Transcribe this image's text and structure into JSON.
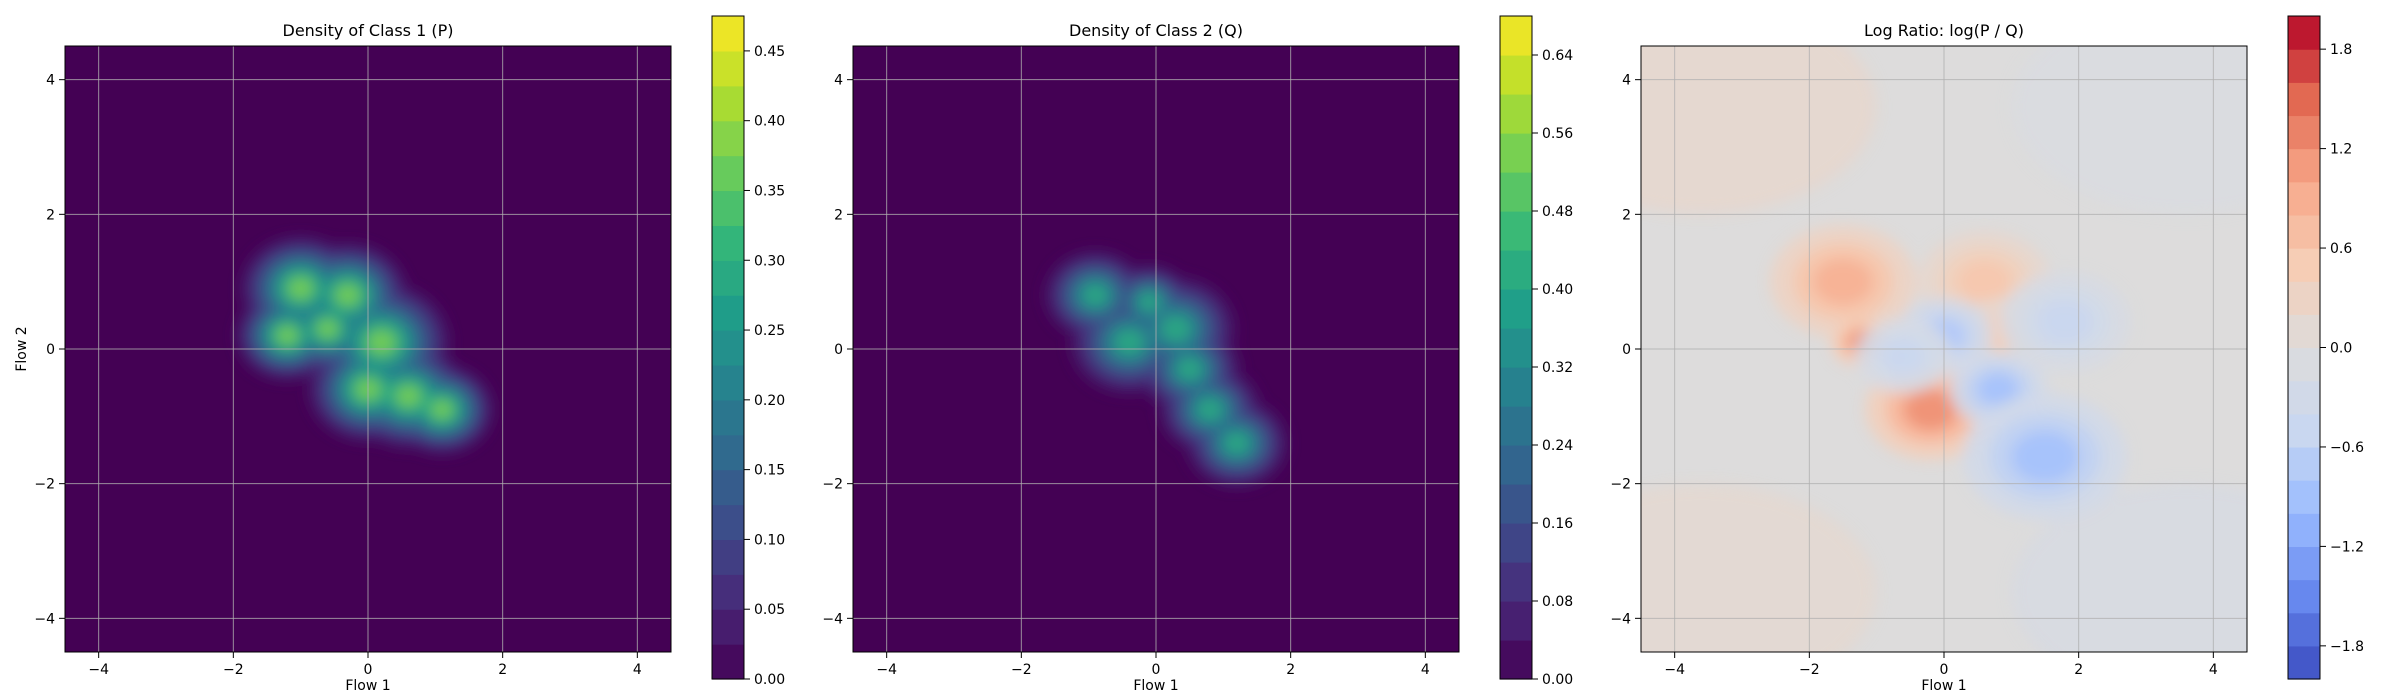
{
  "chart_data": [
    {
      "type": "heatmap",
      "title": "Density of Class 1 (P)",
      "xlabel": "Flow 1",
      "ylabel": "Flow 2",
      "xlim": [
        -4.5,
        4.5
      ],
      "ylim": [
        -4.5,
        4.5
      ],
      "xticks": [
        -4,
        -2,
        0,
        2,
        4
      ],
      "yticks": [
        -4,
        -2,
        0,
        2,
        4
      ],
      "xtick_labels": [
        "−4",
        "−2",
        "0",
        "2",
        "4"
      ],
      "ytick_labels": [
        "−4",
        "−2",
        "0",
        "2",
        "4"
      ],
      "grid": true,
      "colormap": "viridis",
      "colorbar": {
        "min": 0.0,
        "max": 0.475,
        "ticks": [
          0.0,
          0.05,
          0.1,
          0.15,
          0.2,
          0.25,
          0.3,
          0.35,
          0.4,
          0.45
        ],
        "tick_labels": [
          "0.00",
          "0.05",
          "0.10",
          "0.15",
          "0.20",
          "0.25",
          "0.30",
          "0.35",
          "0.40",
          "0.45"
        ]
      },
      "peak_value": 0.45,
      "clusters": [
        {
          "x": -1.0,
          "y": 0.9,
          "spread": 0.35
        },
        {
          "x": -0.3,
          "y": 0.8,
          "spread": 0.35
        },
        {
          "x": -0.6,
          "y": 0.3,
          "spread": 0.3
        },
        {
          "x": -1.2,
          "y": 0.2,
          "spread": 0.3
        },
        {
          "x": 0.0,
          "y": -0.6,
          "spread": 0.35
        },
        {
          "x": 0.6,
          "y": -0.7,
          "spread": 0.35
        },
        {
          "x": 1.1,
          "y": -0.9,
          "spread": 0.3
        },
        {
          "x": 0.2,
          "y": 0.1,
          "spread": 0.4
        }
      ]
    },
    {
      "type": "heatmap",
      "title": "Density of Class 2 (Q)",
      "xlabel": "Flow 1",
      "ylabel": "",
      "xlim": [
        -4.5,
        4.5
      ],
      "ylim": [
        -4.5,
        4.5
      ],
      "xticks": [
        -4,
        -2,
        0,
        2,
        4
      ],
      "yticks": [
        -4,
        -2,
        0,
        2,
        4
      ],
      "xtick_labels": [
        "−4",
        "−2",
        "0",
        "2",
        "4"
      ],
      "ytick_labels": [
        "−4",
        "−2",
        "0",
        "2",
        "4"
      ],
      "grid": true,
      "colormap": "viridis",
      "colorbar": {
        "min": 0.0,
        "max": 0.68,
        "ticks": [
          0.0,
          0.08,
          0.16,
          0.24,
          0.32,
          0.4,
          0.48,
          0.56,
          0.64
        ],
        "tick_labels": [
          "0.00",
          "0.08",
          "0.16",
          "0.24",
          "0.32",
          "0.40",
          "0.48",
          "0.56",
          "0.64"
        ]
      },
      "peak_value": 0.5,
      "clusters": [
        {
          "x": -0.1,
          "y": 0.7,
          "spread": 0.25
        },
        {
          "x": 0.5,
          "y": -0.3,
          "spread": 0.3
        },
        {
          "x": 0.8,
          "y": -0.9,
          "spread": 0.3
        },
        {
          "x": -0.9,
          "y": 0.8,
          "spread": 0.3
        },
        {
          "x": -0.4,
          "y": 0.1,
          "spread": 0.35
        },
        {
          "x": 0.3,
          "y": 0.3,
          "spread": 0.35
        },
        {
          "x": 1.2,
          "y": -1.4,
          "spread": 0.3
        }
      ]
    },
    {
      "type": "heatmap",
      "title": "Log Ratio: log(P / Q)",
      "xlabel": "Flow 1",
      "ylabel": "",
      "xlim": [
        -4.5,
        4.5
      ],
      "ylim": [
        -4.5,
        4.5
      ],
      "xticks": [
        -4,
        -2,
        0,
        2,
        4
      ],
      "yticks": [
        -4,
        -2,
        0,
        2,
        4
      ],
      "xtick_labels": [
        "−4",
        "−2",
        "0",
        "2",
        "4"
      ],
      "ytick_labels": [
        "−4",
        "−2",
        "0",
        "2",
        "4"
      ],
      "grid": true,
      "colormap": "coolwarm",
      "colorbar": {
        "min": -2.0,
        "max": 2.0,
        "ticks": [
          -1.8,
          -1.2,
          -0.6,
          0.0,
          0.6,
          1.2,
          1.8
        ],
        "tick_labels": [
          "−1.8",
          "−1.2",
          "−0.6",
          "0.0",
          "0.6",
          "1.2",
          "1.8"
        ]
      },
      "blobs": [
        {
          "x": -1.5,
          "y": 1.0,
          "amp": 0.9,
          "spread": 0.45
        },
        {
          "x": -1.2,
          "y": 0.1,
          "amp": 1.3,
          "spread": 0.2
        },
        {
          "x": -0.2,
          "y": -0.9,
          "amp": 1.2,
          "spread": 0.4
        },
        {
          "x": 0.6,
          "y": 1.0,
          "amp": 0.6,
          "spread": 0.4
        },
        {
          "x": 0.9,
          "y": 0.2,
          "amp": 0.5,
          "spread": 0.3
        },
        {
          "x": 0.0,
          "y": 0.2,
          "amp": -0.8,
          "spread": 0.3
        },
        {
          "x": 0.8,
          "y": -0.6,
          "amp": -0.9,
          "spread": 0.3
        },
        {
          "x": 1.5,
          "y": -1.6,
          "amp": -0.9,
          "spread": 0.5
        },
        {
          "x": 1.8,
          "y": 0.4,
          "amp": -0.5,
          "spread": 0.4
        },
        {
          "x": -0.6,
          "y": -0.1,
          "amp": -0.5,
          "spread": 0.3
        }
      ]
    }
  ]
}
